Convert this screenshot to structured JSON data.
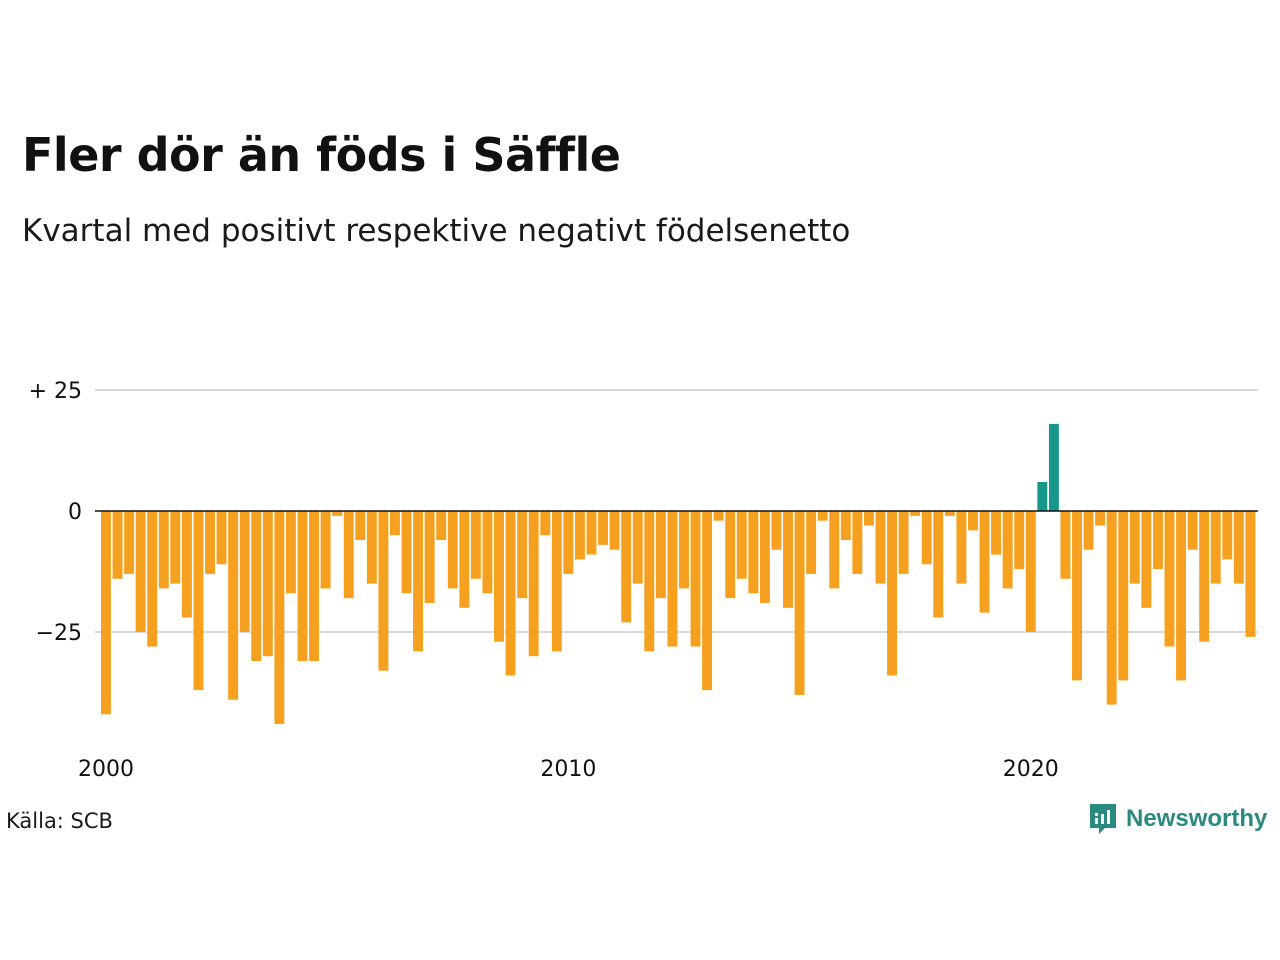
{
  "title": "Fler dör än föds i Säffle",
  "subtitle": "Kvartal med positivt respektive negativt födelsenetto",
  "source": "Källa: SCB",
  "brand": "Newsworthy",
  "colors": {
    "negative": "#f5a01f",
    "positive": "#16978a",
    "grid": "#d9d9d9",
    "axis": "#111111",
    "brand": "#2a8a80"
  },
  "chart_data": {
    "type": "bar",
    "title": "Fler dör än föds i Säffle",
    "subtitle": "Kvartal med positivt respektive negativt födelsenetto",
    "xlabel": "",
    "ylabel": "",
    "x_start": "2000 Q1",
    "x_tick_labels": [
      "2000",
      "2010",
      "2020"
    ],
    "y_tick_labels": [
      "+ 25",
      "0",
      "−25"
    ],
    "y_ticks": [
      25,
      0,
      -25
    ],
    "ylim": [
      -45,
      30
    ],
    "grid": true,
    "values": [
      -42,
      -14,
      -13,
      -25,
      -28,
      -16,
      -15,
      -22,
      -37,
      -13,
      -11,
      -39,
      -25,
      -31,
      -30,
      -44,
      -17,
      -31,
      -31,
      -16,
      -1,
      -18,
      -6,
      -15,
      -33,
      -5,
      -17,
      -29,
      -19,
      -6,
      -16,
      -20,
      -14,
      -17,
      -27,
      -34,
      -18,
      -30,
      -5,
      -29,
      -13,
      -10,
      -9,
      -7,
      -8,
      -23,
      -15,
      -29,
      -18,
      -28,
      -16,
      -28,
      -37,
      -2,
      -18,
      -14,
      -17,
      -19,
      -8,
      -20,
      -38,
      -13,
      -2,
      -16,
      -6,
      -13,
      -3,
      -15,
      -34,
      -13,
      -1,
      -11,
      -22,
      -1,
      -15,
      -4,
      -21,
      -9,
      -16,
      -12,
      -25,
      6,
      18,
      -14,
      -35,
      -8,
      -3,
      -40,
      -35,
      -15,
      -20,
      -12,
      -28,
      -35,
      -8,
      -27,
      -15,
      -10,
      -15,
      -26
    ]
  }
}
